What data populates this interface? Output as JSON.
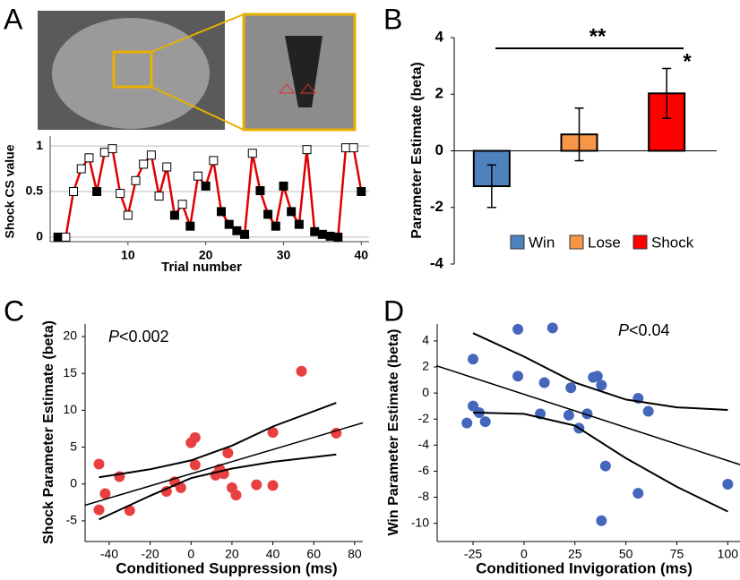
{
  "chart_data": [
    {
      "type": "line",
      "panel_label": "A",
      "xlabel": "Trial number",
      "ylabel": "Shock CS value",
      "x": [
        1,
        2,
        3,
        4,
        5,
        6,
        7,
        8,
        9,
        10,
        11,
        12,
        13,
        14,
        15,
        16,
        17,
        18,
        19,
        20,
        21,
        22,
        23,
        24,
        25,
        26,
        27,
        28,
        29,
        30,
        31,
        32,
        33,
        34,
        35,
        36,
        37,
        38,
        39,
        40
      ],
      "values": [
        0,
        0,
        0.5,
        0.75,
        0.87,
        0.5,
        0.93,
        0.97,
        0.48,
        0.24,
        0.62,
        0.8,
        0.9,
        0.45,
        0.77,
        0.24,
        0.36,
        0.12,
        0.67,
        0.56,
        0.84,
        0.28,
        0.14,
        0.07,
        0.03,
        0.92,
        0.51,
        0.25,
        0.12,
        0.56,
        0.28,
        0.14,
        0.96,
        0.06,
        0.03,
        0.01,
        0,
        0.98,
        0.98,
        0.5
      ],
      "filled": [
        true,
        false,
        false,
        false,
        false,
        true,
        false,
        false,
        false,
        false,
        false,
        false,
        false,
        false,
        false,
        true,
        false,
        true,
        false,
        true,
        false,
        true,
        true,
        true,
        true,
        false,
        true,
        true,
        true,
        true,
        true,
        true,
        false,
        true,
        true,
        true,
        true,
        false,
        false,
        true
      ],
      "color": "#e00000",
      "xlim": [
        0,
        41
      ],
      "ylim": [
        -0.05,
        1.05
      ],
      "xticks": [
        10,
        20,
        30,
        40
      ],
      "yticks": [
        0,
        0.5,
        1
      ],
      "grid": true
    },
    {
      "type": "bar",
      "panel_label": "B",
      "ylabel": "Parameter Estimate (beta)",
      "categories": [
        "Win",
        "Lose",
        "Shock"
      ],
      "values": [
        -1.25,
        0.58,
        2.03
      ],
      "errors": [
        0.75,
        0.93,
        0.88
      ],
      "colors": [
        "#4f81bd",
        "#f79646",
        "#ff0000"
      ],
      "ylim": [
        -4,
        4
      ],
      "yticks": [
        -4,
        -2,
        0,
        2,
        4
      ],
      "annotations": [
        "**",
        "*"
      ],
      "legend": "bottom"
    },
    {
      "type": "scatter",
      "panel_label": "C",
      "xlabel": "Conditioned Suppression (ms)",
      "ylabel": "Shock Parameter Estimate (beta)",
      "annotation": {
        "italic": "P",
        "text": "<0.002"
      },
      "color": "#e84040",
      "x": [
        -45,
        -45,
        -42,
        -35,
        -30,
        -12,
        -8,
        -5,
        0,
        2,
        2,
        12,
        14,
        16,
        18,
        20,
        22,
        32,
        40,
        40,
        54,
        71
      ],
      "y": [
        -3.5,
        2.7,
        -1.3,
        1.0,
        -3.6,
        -1.0,
        0.3,
        -0.5,
        5.6,
        6.3,
        2.6,
        1.2,
        2.0,
        1.4,
        4.2,
        -0.5,
        -1.5,
        -0.1,
        -0.2,
        7.0,
        15.3,
        6.9
      ],
      "fit": {
        "x": [
          -52,
          84
        ],
        "y": [
          -2.9,
          8.3
        ]
      },
      "ci_upper": {
        "x": [
          -45,
          -20,
          0,
          20,
          40,
          71
        ],
        "y": [
          0.9,
          2.0,
          3.2,
          5.2,
          7.8,
          11.0
        ]
      },
      "ci_lower": {
        "x": [
          -45,
          -20,
          0,
          20,
          40,
          71
        ],
        "y": [
          -4.8,
          -1.6,
          0.8,
          2.1,
          3.0,
          4.0
        ]
      },
      "xlim": [
        -51.8,
        84
      ],
      "ylim": [
        -7.8,
        21.7
      ],
      "xticks": [
        -40,
        -20,
        0,
        20,
        40,
        60,
        80
      ],
      "yticks": [
        -5,
        0,
        5,
        10,
        15,
        20
      ]
    },
    {
      "type": "scatter",
      "panel_label": "D",
      "xlabel": "Conditioned Invigoration (ms)",
      "ylabel": "Win Parameter Estimate (beta)",
      "annotation": {
        "italic": "P",
        "text": "<0.04"
      },
      "color": "#4466bb",
      "x": [
        -28,
        -25,
        -25,
        -22,
        -19,
        -3,
        -3,
        10,
        14,
        8,
        23,
        22,
        27,
        31,
        34,
        36,
        38,
        40,
        38,
        56,
        56,
        61,
        100
      ],
      "y": [
        -2.3,
        2.6,
        -1.0,
        -1.5,
        -2.2,
        4.9,
        1.3,
        0.8,
        5.0,
        -1.6,
        0.4,
        -1.7,
        -2.7,
        -1.6,
        1.2,
        1.3,
        0.6,
        -5.6,
        -9.8,
        -0.4,
        -7.7,
        -1.4,
        -7.0
      ],
      "fit": {
        "x": [
          -43,
          106
        ],
        "y": [
          2.1,
          -5.5
        ]
      },
      "ci_upper": {
        "x": [
          -25,
          0,
          25,
          50,
          75,
          100
        ],
        "y": [
          4.6,
          2.8,
          0.8,
          -0.5,
          -1.1,
          -1.3
        ]
      },
      "ci_lower": {
        "x": [
          -25,
          0,
          25,
          50,
          75,
          100
        ],
        "y": [
          -1.5,
          -1.6,
          -2.5,
          -5.0,
          -7.2,
          -9.1
        ]
      },
      "xlim": [
        -42.6,
        106
      ],
      "ylim": [
        -11.4,
        5.3
      ],
      "xticks": [
        -25,
        0,
        25,
        50,
        75,
        100
      ],
      "yticks": [
        -10,
        -8,
        -6,
        -4,
        -2,
        0,
        2,
        4
      ]
    }
  ]
}
